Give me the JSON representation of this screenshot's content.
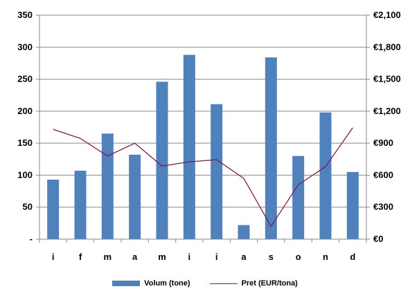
{
  "chart_data": {
    "type": "bar",
    "categories": [
      "i",
      "f",
      "m",
      "a",
      "m",
      "i",
      "i",
      "a",
      "s",
      "o",
      "n",
      "d"
    ],
    "series": [
      {
        "name": "Volum (tone)",
        "type": "bar",
        "axis": "left",
        "color": "#4f81bd",
        "values": [
          93,
          107,
          165,
          132,
          246,
          288,
          211,
          22,
          284,
          130,
          198,
          105
        ]
      },
      {
        "name": "Pret (EUR/tona)",
        "type": "line",
        "axis": "right",
        "color": "#7b1f4f",
        "values": [
          1030,
          945,
          780,
          900,
          685,
          725,
          745,
          570,
          120,
          510,
          680,
          1045
        ]
      }
    ],
    "left_axis": {
      "ylim": [
        0,
        350
      ],
      "ticks": [
        0,
        50,
        100,
        150,
        200,
        250,
        300,
        350
      ],
      "tick_labels": [
        "-",
        "50",
        "100",
        "150",
        "200",
        "250",
        "300",
        "350"
      ]
    },
    "right_axis": {
      "ylim": [
        0,
        2100
      ],
      "ticks": [
        0,
        300,
        600,
        900,
        1200,
        1500,
        1800,
        2100
      ],
      "tick_labels": [
        "€0",
        "€300",
        "€600",
        "€900",
        "€1,200",
        "€1,500",
        "€1,800",
        "€2,100"
      ]
    },
    "grid": true,
    "legend_position": "bottom"
  }
}
